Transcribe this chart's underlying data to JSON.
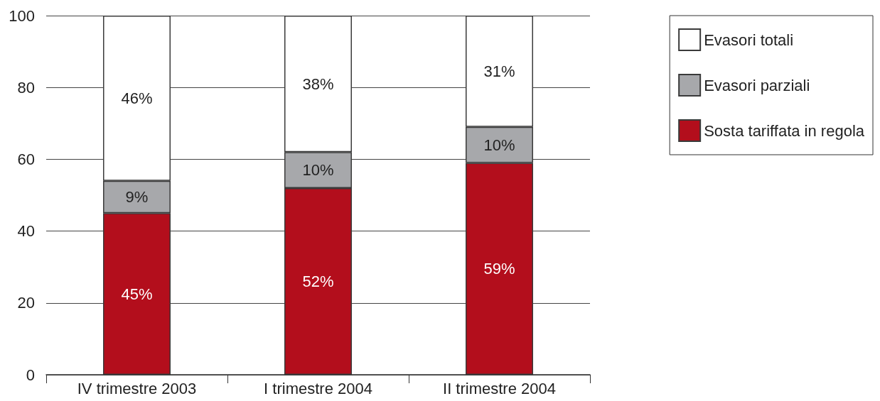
{
  "chart_data": {
    "type": "bar",
    "stacked": true,
    "categories": [
      "IV trimestre 2003",
      "I trimestre 2004",
      "II trimestre 2004"
    ],
    "series": [
      {
        "name": "Sosta tariffata in regola",
        "color": "#b30e1c",
        "values": [
          45,
          52,
          59
        ],
        "value_labels": [
          "45%",
          "52%",
          "59%"
        ]
      },
      {
        "name": "Evasori parziali",
        "color": "#a7a8ab",
        "values": [
          9,
          10,
          10
        ],
        "value_labels": [
          "9%",
          "10%",
          "10%"
        ]
      },
      {
        "name": "Evasori totali",
        "color": "#ffffff",
        "values": [
          46,
          38,
          31
        ],
        "value_labels": [
          "46%",
          "38%",
          "31%"
        ]
      }
    ],
    "ylim": [
      0,
      100
    ],
    "yticks": [
      0,
      20,
      40,
      60,
      80,
      100
    ],
    "grid": "y",
    "legend": "top right"
  }
}
